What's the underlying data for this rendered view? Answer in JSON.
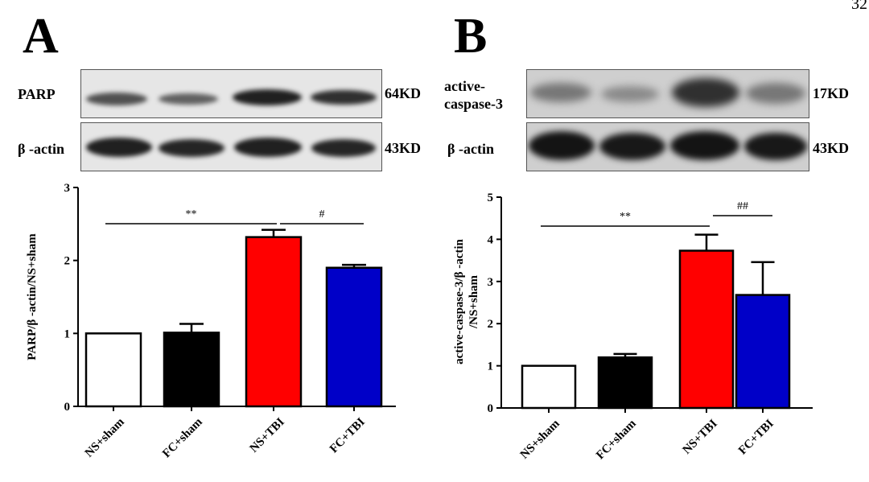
{
  "page_number": "32",
  "panels": [
    {
      "letter": "A",
      "blots": [
        {
          "protein": "PARP",
          "size": "64KD"
        },
        {
          "protein": "β -actin",
          "size": "43KD"
        }
      ]
    },
    {
      "letter": "B",
      "blots": [
        {
          "protein": "active-\ncaspase-3",
          "size": "17KD"
        },
        {
          "protein": "β -actin",
          "size": "43KD"
        }
      ]
    }
  ],
  "colors": {
    "ns_sham": "#ffffff",
    "fc_sham": "#000000",
    "ns_tbi": "#ff0000",
    "fc_tbi": "#0000c8"
  },
  "chart_data": [
    {
      "type": "bar",
      "categories": [
        "NS+sham",
        "FC+sham",
        "NS+TBI",
        "FC+TBI"
      ],
      "values": [
        1.0,
        1.01,
        2.32,
        1.9
      ],
      "errors": [
        0,
        0.12,
        0.1,
        0.04
      ],
      "ylabel": "PARP/β -actin/NS+sham",
      "ylim": [
        0,
        3
      ],
      "yticks": [
        "0",
        "1",
        "2",
        "3"
      ],
      "significance": [
        {
          "from": 0,
          "to": 2,
          "label": "**"
        },
        {
          "from": 2,
          "to": 3,
          "label": "#"
        }
      ]
    },
    {
      "type": "bar",
      "categories": [
        "NS+sham",
        "FC+sham",
        "NS+TBI",
        "FC+TBI"
      ],
      "values": [
        1.0,
        1.2,
        3.73,
        2.68
      ],
      "errors": [
        0,
        0.08,
        0.38,
        0.78
      ],
      "ylabel": "active-caspase-3/β -actin\n/NS+sham",
      "ylim": [
        0,
        5
      ],
      "yticks": [
        "0",
        "1",
        "2",
        "3",
        "4",
        "5"
      ],
      "significance": [
        {
          "from": 0,
          "to": 2,
          "label": "**"
        },
        {
          "from": 2,
          "to": 3,
          "label": "##"
        }
      ]
    }
  ]
}
